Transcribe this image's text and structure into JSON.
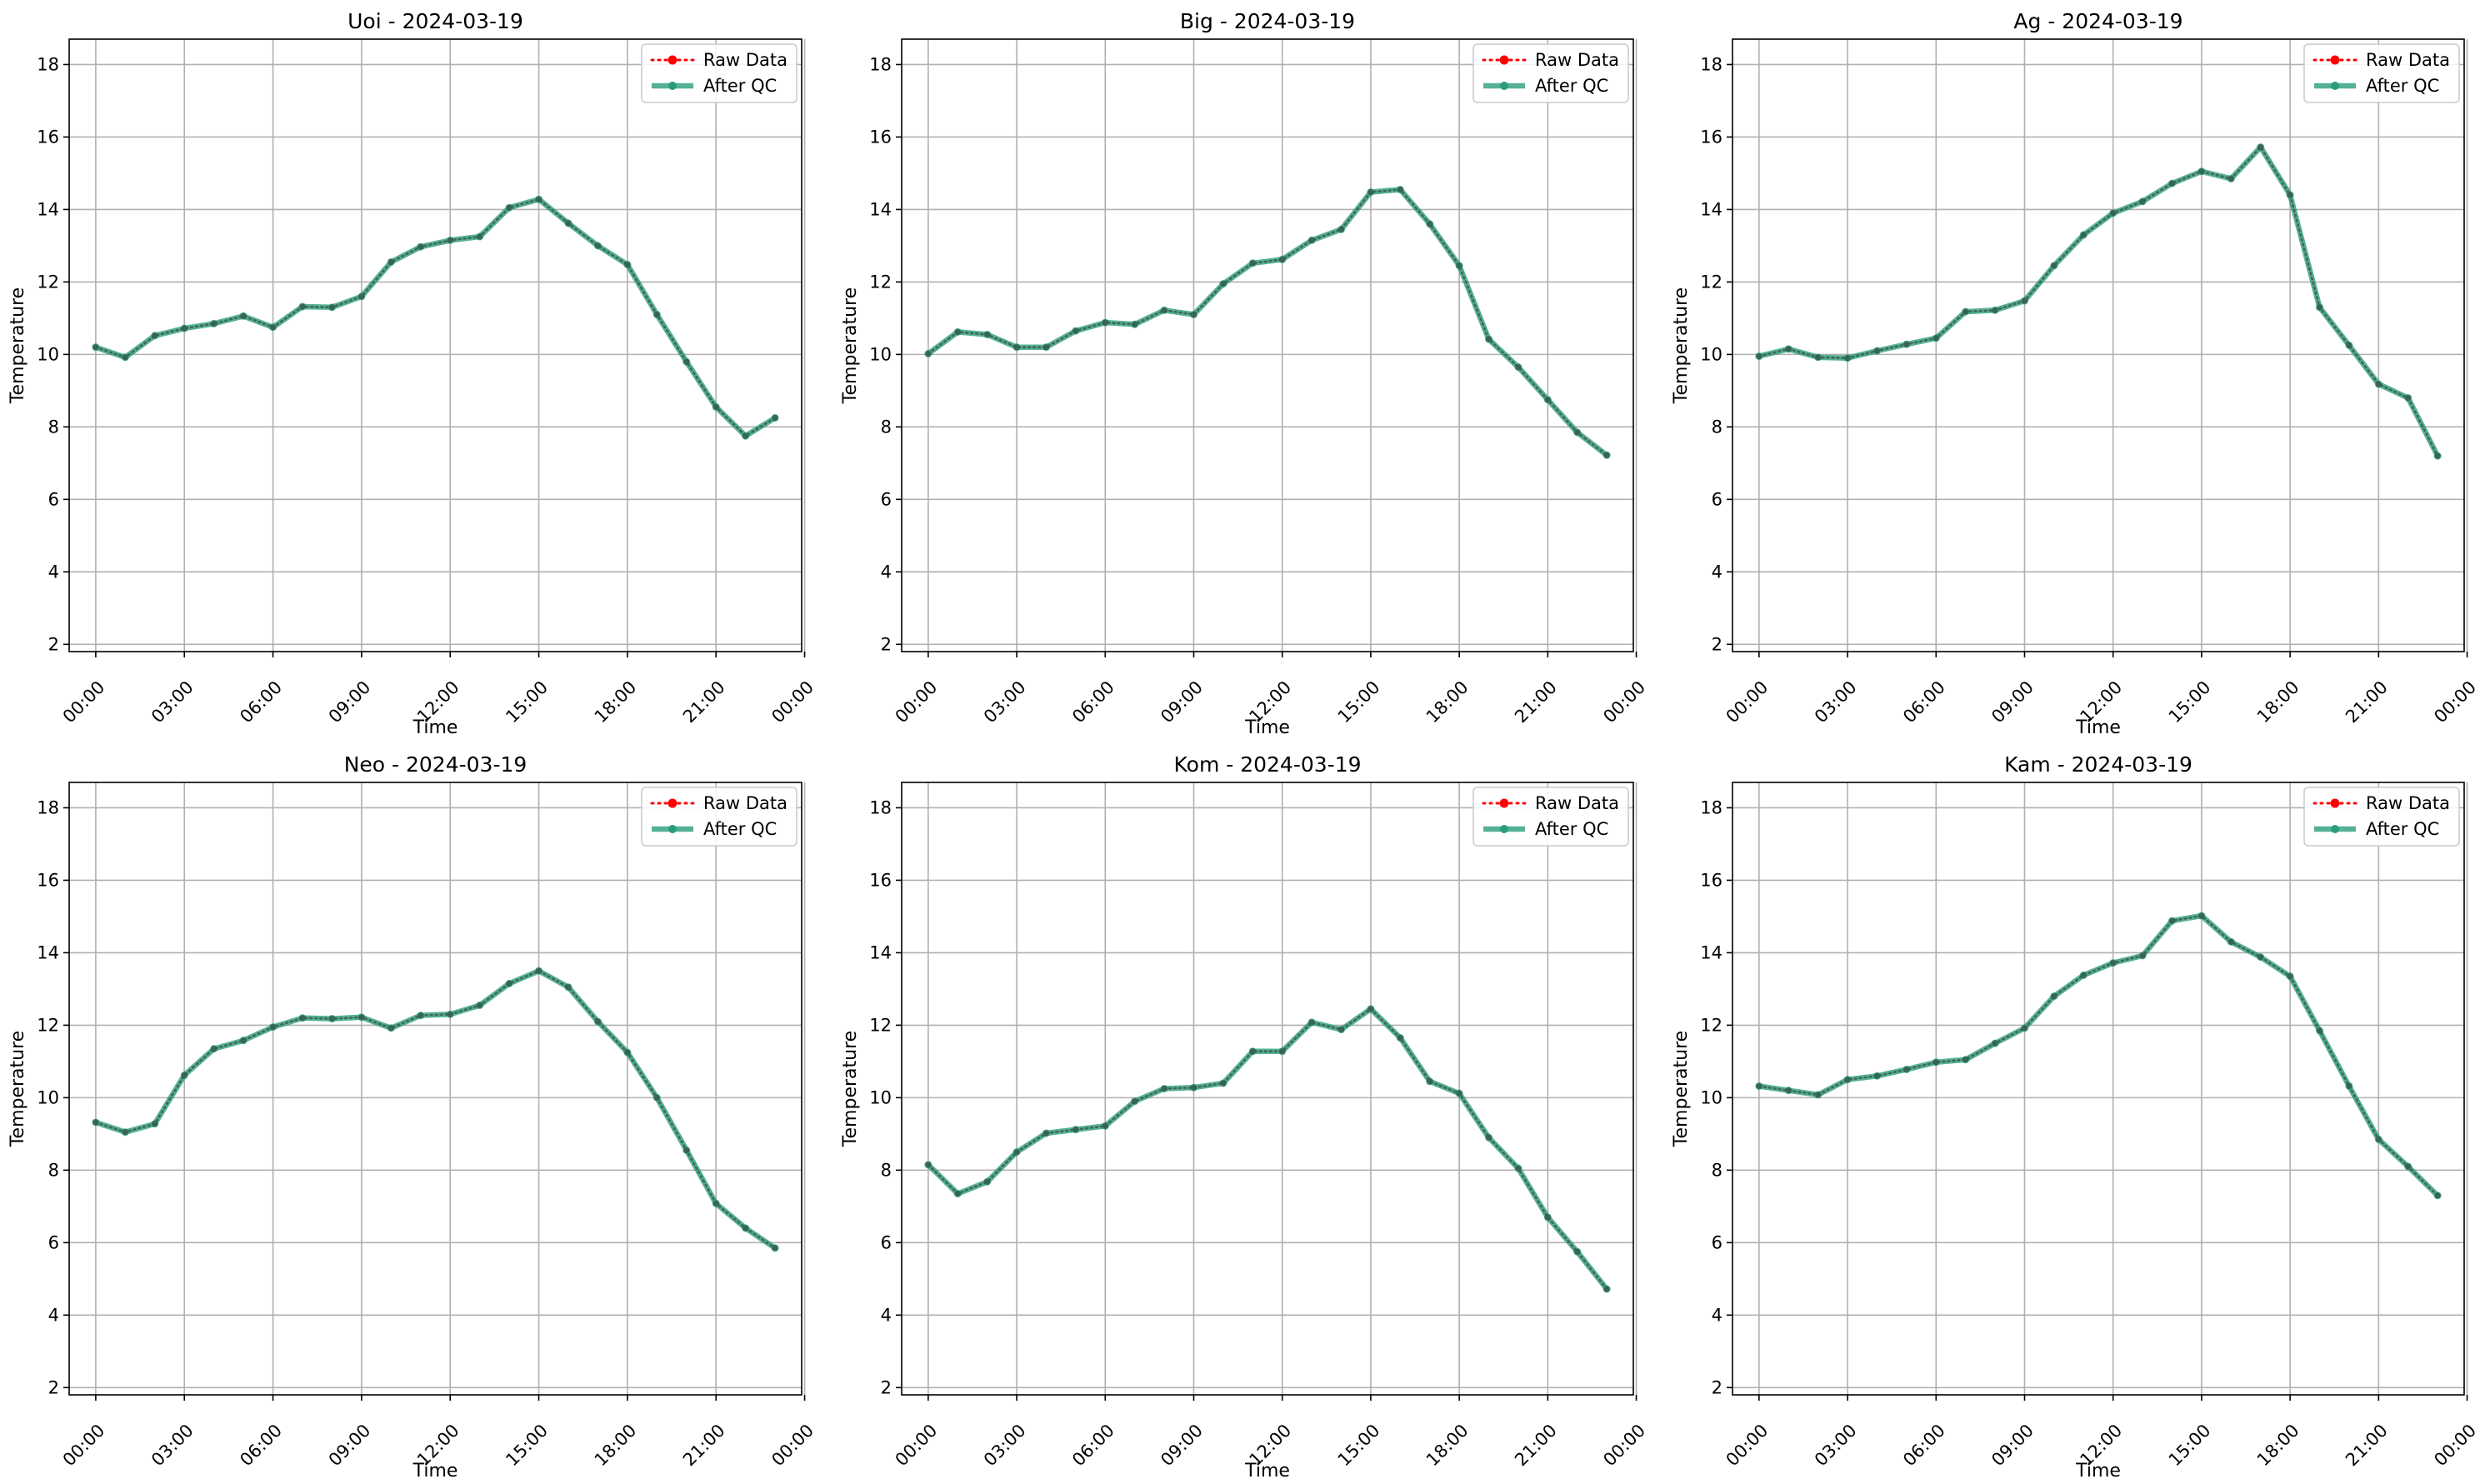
{
  "chart_data": [
    {
      "type": "line",
      "title": "Uoi - 2024-03-19",
      "xlabel": "Time",
      "ylabel": "Temperature",
      "ylim": [
        1.8,
        18.7
      ],
      "xlim": [
        -0.9,
        23.9
      ],
      "yticks": [
        "2",
        "4",
        "6",
        "8",
        "10",
        "12",
        "14",
        "16",
        "18"
      ],
      "xticks": [
        "00:00",
        "03:00",
        "06:00",
        "09:00",
        "12:00",
        "15:00",
        "18:00",
        "21:00",
        "00:00"
      ],
      "grid": true,
      "legend": "upper right",
      "x": [
        "00:00",
        "01:00",
        "02:00",
        "03:00",
        "04:00",
        "05:00",
        "06:00",
        "07:00",
        "08:00",
        "09:00",
        "10:00",
        "11:00",
        "12:00",
        "13:00",
        "14:00",
        "15:00",
        "16:00",
        "17:00",
        "18:00",
        "19:00",
        "20:00",
        "21:00",
        "22:00",
        "23:00"
      ],
      "series": [
        {
          "name": "Raw Data",
          "color": "#ff0000",
          "style": "dotted",
          "values": [
            10.2,
            9.92,
            10.52,
            10.72,
            10.85,
            11.06,
            10.75,
            11.32,
            11.3,
            11.6,
            12.55,
            12.97,
            13.15,
            13.25,
            14.05,
            14.28,
            13.62,
            13.0,
            12.48,
            11.1,
            9.8,
            8.55,
            7.75,
            8.25
          ]
        },
        {
          "name": "After QC",
          "color": "#2a9d7b",
          "style": "solid",
          "values": [
            10.2,
            9.92,
            10.52,
            10.72,
            10.85,
            11.06,
            10.75,
            11.32,
            11.3,
            11.6,
            12.55,
            12.97,
            13.15,
            13.25,
            14.05,
            14.28,
            13.62,
            13.0,
            12.48,
            11.1,
            9.8,
            8.55,
            7.75,
            8.25
          ]
        }
      ]
    },
    {
      "type": "line",
      "title": "Big - 2024-03-19",
      "xlabel": "Time",
      "ylabel": "Temperature",
      "ylim": [
        1.8,
        18.7
      ],
      "xlim": [
        -0.9,
        23.9
      ],
      "yticks": [
        "2",
        "4",
        "6",
        "8",
        "10",
        "12",
        "14",
        "16",
        "18"
      ],
      "xticks": [
        "00:00",
        "03:00",
        "06:00",
        "09:00",
        "12:00",
        "15:00",
        "18:00",
        "21:00",
        "00:00"
      ],
      "grid": true,
      "legend": "upper right",
      "x": [
        "00:00",
        "01:00",
        "02:00",
        "03:00",
        "04:00",
        "05:00",
        "06:00",
        "07:00",
        "08:00",
        "09:00",
        "10:00",
        "11:00",
        "12:00",
        "13:00",
        "14:00",
        "15:00",
        "16:00",
        "17:00",
        "18:00",
        "19:00",
        "20:00",
        "21:00",
        "22:00",
        "23:00"
      ],
      "series": [
        {
          "name": "Raw Data",
          "color": "#ff0000",
          "style": "dotted",
          "values": [
            10.02,
            10.62,
            10.55,
            10.2,
            10.2,
            10.65,
            10.88,
            10.83,
            11.22,
            11.1,
            11.95,
            12.52,
            12.62,
            13.15,
            13.45,
            14.48,
            14.55,
            13.6,
            12.45,
            10.42,
            9.65,
            8.75,
            7.85,
            7.22
          ]
        },
        {
          "name": "After QC",
          "color": "#2a9d7b",
          "style": "solid",
          "values": [
            10.02,
            10.62,
            10.55,
            10.2,
            10.2,
            10.65,
            10.88,
            10.83,
            11.22,
            11.1,
            11.95,
            12.52,
            12.62,
            13.15,
            13.45,
            14.48,
            14.55,
            13.6,
            12.45,
            10.42,
            9.65,
            8.75,
            7.85,
            7.22
          ]
        }
      ]
    },
    {
      "type": "line",
      "title": "Ag - 2024-03-19",
      "xlabel": "Time",
      "ylabel": "Temperature",
      "ylim": [
        1.8,
        18.7
      ],
      "xlim": [
        -0.9,
        23.9
      ],
      "yticks": [
        "2",
        "4",
        "6",
        "8",
        "10",
        "12",
        "14",
        "16",
        "18"
      ],
      "xticks": [
        "00:00",
        "03:00",
        "06:00",
        "09:00",
        "12:00",
        "15:00",
        "18:00",
        "21:00",
        "00:00"
      ],
      "grid": true,
      "legend": "upper right",
      "x": [
        "00:00",
        "01:00",
        "02:00",
        "03:00",
        "04:00",
        "05:00",
        "06:00",
        "07:00",
        "08:00",
        "09:00",
        "10:00",
        "11:00",
        "12:00",
        "13:00",
        "14:00",
        "15:00",
        "16:00",
        "17:00",
        "18:00",
        "19:00",
        "20:00",
        "21:00",
        "22:00",
        "23:00"
      ],
      "series": [
        {
          "name": "Raw Data",
          "color": "#ff0000",
          "style": "dotted",
          "values": [
            9.95,
            10.15,
            9.92,
            9.9,
            10.1,
            10.28,
            10.45,
            11.18,
            11.22,
            11.48,
            12.45,
            13.3,
            13.9,
            14.22,
            14.72,
            15.05,
            14.85,
            15.72,
            14.4,
            11.3,
            10.25,
            9.18,
            8.8,
            7.2
          ]
        },
        {
          "name": "After QC",
          "color": "#2a9d7b",
          "style": "solid",
          "values": [
            9.95,
            10.15,
            9.92,
            9.9,
            10.1,
            10.28,
            10.45,
            11.18,
            11.22,
            11.48,
            12.45,
            13.3,
            13.9,
            14.22,
            14.72,
            15.05,
            14.85,
            15.72,
            14.4,
            11.3,
            10.25,
            9.18,
            8.8,
            7.2
          ]
        }
      ]
    },
    {
      "type": "line",
      "title": "Neo - 2024-03-19",
      "xlabel": "Time",
      "ylabel": "Temperature",
      "ylim": [
        1.8,
        18.7
      ],
      "xlim": [
        -0.9,
        23.9
      ],
      "yticks": [
        "2",
        "4",
        "6",
        "8",
        "10",
        "12",
        "14",
        "16",
        "18"
      ],
      "xticks": [
        "00:00",
        "03:00",
        "06:00",
        "09:00",
        "12:00",
        "15:00",
        "18:00",
        "21:00",
        "00:00"
      ],
      "grid": true,
      "legend": "upper right",
      "x": [
        "00:00",
        "01:00",
        "02:00",
        "03:00",
        "04:00",
        "05:00",
        "06:00",
        "07:00",
        "08:00",
        "09:00",
        "10:00",
        "11:00",
        "12:00",
        "13:00",
        "14:00",
        "15:00",
        "16:00",
        "17:00",
        "18:00",
        "19:00",
        "20:00",
        "21:00",
        "22:00",
        "23:00"
      ],
      "series": [
        {
          "name": "Raw Data",
          "color": "#ff0000",
          "style": "dotted",
          "values": [
            9.32,
            9.05,
            9.28,
            10.62,
            11.35,
            11.58,
            11.95,
            12.2,
            12.18,
            12.22,
            11.92,
            12.27,
            12.3,
            12.55,
            13.15,
            13.5,
            13.05,
            12.1,
            11.25,
            10.0,
            8.55,
            7.08,
            6.4,
            5.85
          ]
        },
        {
          "name": "After QC",
          "color": "#2a9d7b",
          "style": "solid",
          "values": [
            9.32,
            9.05,
            9.28,
            10.62,
            11.35,
            11.58,
            11.95,
            12.2,
            12.18,
            12.22,
            11.92,
            12.27,
            12.3,
            12.55,
            13.15,
            13.5,
            13.05,
            12.1,
            11.25,
            10.0,
            8.55,
            7.08,
            6.4,
            5.85
          ]
        }
      ]
    },
    {
      "type": "line",
      "title": "Kom - 2024-03-19",
      "xlabel": "Time",
      "ylabel": "Temperature",
      "ylim": [
        1.8,
        18.7
      ],
      "xlim": [
        -0.9,
        23.9
      ],
      "yticks": [
        "2",
        "4",
        "6",
        "8",
        "10",
        "12",
        "14",
        "16",
        "18"
      ],
      "xticks": [
        "00:00",
        "03:00",
        "06:00",
        "09:00",
        "12:00",
        "15:00",
        "18:00",
        "21:00",
        "00:00"
      ],
      "grid": true,
      "legend": "upper right",
      "x": [
        "00:00",
        "01:00",
        "02:00",
        "03:00",
        "04:00",
        "05:00",
        "06:00",
        "07:00",
        "08:00",
        "09:00",
        "10:00",
        "11:00",
        "12:00",
        "13:00",
        "14:00",
        "15:00",
        "16:00",
        "17:00",
        "18:00",
        "19:00",
        "20:00",
        "21:00",
        "22:00",
        "23:00"
      ],
      "series": [
        {
          "name": "Raw Data",
          "color": "#ff0000",
          "style": "dotted",
          "values": [
            8.15,
            7.35,
            7.68,
            8.5,
            9.02,
            9.12,
            9.22,
            9.9,
            10.25,
            10.28,
            10.4,
            11.28,
            11.28,
            12.08,
            11.88,
            12.45,
            11.65,
            10.45,
            10.12,
            8.9,
            8.05,
            6.7,
            5.75,
            4.72
          ]
        },
        {
          "name": "After QC",
          "color": "#2a9d7b",
          "style": "solid",
          "values": [
            8.15,
            7.35,
            7.68,
            8.5,
            9.02,
            9.12,
            9.22,
            9.9,
            10.25,
            10.28,
            10.4,
            11.28,
            11.28,
            12.08,
            11.88,
            12.45,
            11.65,
            10.45,
            10.12,
            8.9,
            8.05,
            6.7,
            5.75,
            4.72
          ]
        }
      ]
    },
    {
      "type": "line",
      "title": "Kam - 2024-03-19",
      "xlabel": "Time",
      "ylabel": "Temperature",
      "ylim": [
        1.8,
        18.7
      ],
      "xlim": [
        -0.9,
        23.9
      ],
      "yticks": [
        "2",
        "4",
        "6",
        "8",
        "10",
        "12",
        "14",
        "16",
        "18"
      ],
      "xticks": [
        "00:00",
        "03:00",
        "06:00",
        "09:00",
        "12:00",
        "15:00",
        "18:00",
        "21:00",
        "00:00"
      ],
      "grid": true,
      "legend": "upper right",
      "x": [
        "00:00",
        "01:00",
        "02:00",
        "03:00",
        "04:00",
        "05:00",
        "06:00",
        "07:00",
        "08:00",
        "09:00",
        "10:00",
        "11:00",
        "12:00",
        "13:00",
        "14:00",
        "15:00",
        "16:00",
        "17:00",
        "18:00",
        "19:00",
        "20:00",
        "21:00",
        "22:00",
        "23:00"
      ],
      "series": [
        {
          "name": "Raw Data",
          "color": "#ff0000",
          "style": "dotted",
          "values": [
            10.32,
            10.2,
            10.08,
            10.5,
            10.6,
            10.78,
            10.98,
            11.05,
            11.5,
            11.92,
            12.8,
            13.38,
            13.72,
            13.92,
            14.88,
            15.02,
            14.3,
            13.88,
            13.35,
            11.85,
            10.32,
            8.85,
            8.1,
            7.3
          ]
        },
        {
          "name": "After QC",
          "color": "#2a9d7b",
          "style": "solid",
          "values": [
            10.32,
            10.2,
            10.08,
            10.5,
            10.6,
            10.78,
            10.98,
            11.05,
            11.5,
            11.92,
            12.8,
            13.38,
            13.72,
            13.92,
            14.88,
            15.02,
            14.3,
            13.88,
            13.35,
            11.85,
            10.32,
            8.85,
            8.1,
            7.3
          ]
        }
      ]
    }
  ]
}
